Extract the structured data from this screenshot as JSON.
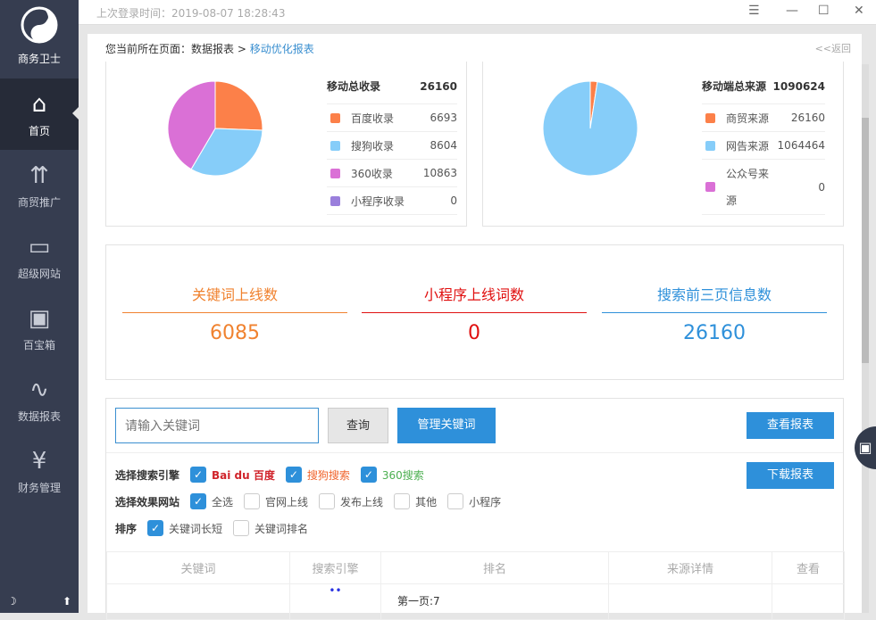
{
  "sidebar": {
    "brand": "商务卫士",
    "items": [
      {
        "label": "首页",
        "icon": "⌂"
      },
      {
        "label": "商贸推广",
        "icon": "⇈"
      },
      {
        "label": "超级网站",
        "icon": "▭"
      },
      {
        "label": "百宝箱",
        "icon": "▣"
      },
      {
        "label": "数据报表",
        "icon": "∿"
      },
      {
        "label": "财务管理",
        "icon": "¥"
      }
    ]
  },
  "topbar": {
    "last_login": "上次登录时间：2019-08-07 18:28:43"
  },
  "breadcrumb": {
    "prefix": "您当前所在页面：数据报表 >",
    "current": "移动优化报表",
    "back": "<<返回"
  },
  "chart_data": [
    {
      "type": "pie",
      "title": "移动总收录",
      "total": 26160,
      "series": [
        {
          "name": "百度收录",
          "value": 6693,
          "color": "#fc8049"
        },
        {
          "name": "搜狗收录",
          "value": 8604,
          "color": "#86cdf9"
        },
        {
          "name": "360收录",
          "value": 10863,
          "color": "#da70d6"
        },
        {
          "name": "小程序收录",
          "value": 0,
          "color": "#9a7fdc"
        }
      ]
    },
    {
      "type": "pie",
      "title": "移动端总来源",
      "total": 1090624,
      "series": [
        {
          "name": "商贸来源",
          "value": 26160,
          "color": "#fc8049"
        },
        {
          "name": "网告来源",
          "value": 1064464,
          "color": "#86cdf9"
        },
        {
          "name": "公众号来源",
          "value": 0,
          "color": "#da70d6"
        }
      ]
    }
  ],
  "stats": [
    {
      "label": "关键词上线数",
      "value": "6085",
      "color": "#f0822f"
    },
    {
      "label": "小程序上线词数",
      "value": "0",
      "color": "#e01010"
    },
    {
      "label": "搜索前三页信息数",
      "value": "26160",
      "color": "#2e90da"
    }
  ],
  "search": {
    "placeholder": "请输入关键词",
    "query": "查询",
    "manage": "管理关键词",
    "view_report": "查看报表",
    "download_report": "下载报表"
  },
  "filters": {
    "engine_label": "选择搜索引擎",
    "engines": [
      "Bai du 百度",
      "搜狗搜索",
      "360搜索"
    ],
    "site_label": "选择效果网站",
    "sites": [
      {
        "label": "全选",
        "checked": true
      },
      {
        "label": "官网上线",
        "checked": false
      },
      {
        "label": "发布上线",
        "checked": false
      },
      {
        "label": "其他",
        "checked": false
      },
      {
        "label": "小程序",
        "checked": false
      }
    ],
    "sort_label": "排序",
    "sorts": [
      {
        "label": "关键词长短",
        "checked": true
      },
      {
        "label": "关键词排名",
        "checked": false
      }
    ]
  },
  "table": {
    "headers": [
      "关键词",
      "搜索引擎",
      "排名",
      "来源详情",
      "查看"
    ],
    "rows": [
      {
        "rank": "第一页:7"
      }
    ]
  }
}
